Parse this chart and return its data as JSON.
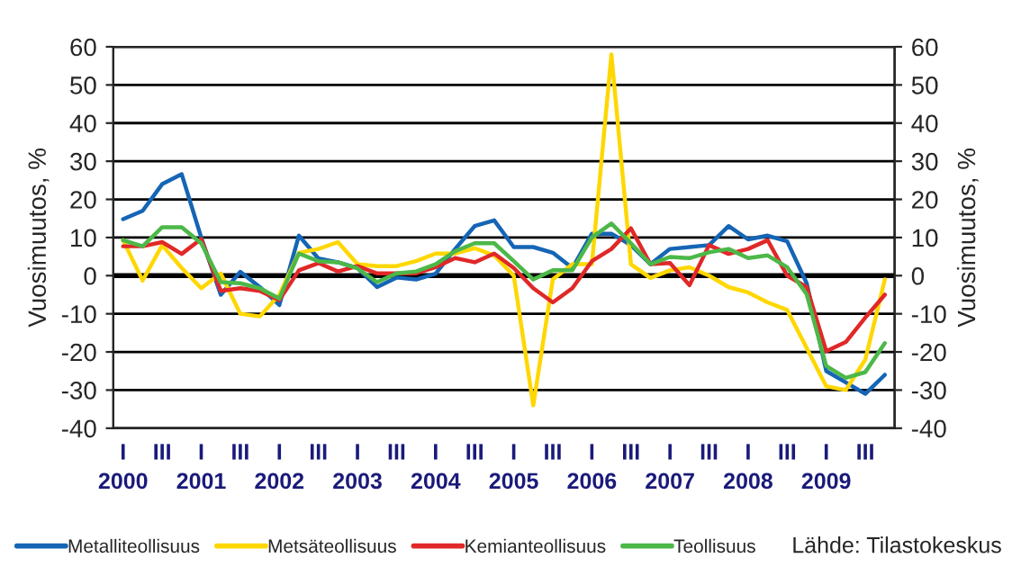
{
  "chart_data": {
    "type": "line",
    "ylabel": "Vuosimuutos, %",
    "y2label": "Vuosimuutos, %",
    "categories": [
      "I\n2000",
      null,
      "III",
      null,
      "I\n2001",
      null,
      "III",
      null,
      "I\n2002",
      null,
      "III",
      null,
      "I\n2003",
      null,
      "III",
      null,
      "I\n2004",
      null,
      "III",
      null,
      "I\n2005",
      null,
      "III",
      null,
      "I\n2006",
      null,
      "III",
      null,
      "I\n2007",
      null,
      "III",
      null,
      "I\n2008",
      null,
      "III",
      null,
      "I\n2009",
      null,
      "III",
      null
    ],
    "series": [
      {
        "name": "Metalliteollisuus",
        "color": "#1565b5",
        "values": [
          14.8,
          17,
          24,
          26.6,
          10,
          -5,
          1,
          -3,
          -7.7,
          10.5,
          4.5,
          3.5,
          2,
          -3,
          -0.5,
          -1,
          0.5,
          7,
          13,
          14.5,
          7.5,
          7.5,
          6,
          2,
          11,
          11,
          8,
          3,
          7,
          7.5,
          8,
          13,
          9.5,
          10.5,
          9,
          -2,
          -25,
          -28,
          -31,
          -26
        ]
      },
      {
        "name": "Metsäteollisuus",
        "color": "#ffd700",
        "values": [
          9.3,
          -1.3,
          8,
          2,
          -3.3,
          0.6,
          -10,
          -10.7,
          -5,
          6,
          7,
          8.8,
          3,
          2.5,
          2.5,
          3.8,
          5.8,
          5.8,
          7.2,
          5.3,
          0,
          -34,
          -1,
          3,
          3,
          58,
          3,
          -0.6,
          1.4,
          2.2,
          0,
          -3,
          -4.4,
          -7,
          -9,
          -19,
          -29,
          -30,
          -22,
          -1
        ]
      },
      {
        "name": "Kemianteollisuus",
        "color": "#e02828",
        "values": [
          7.7,
          7.7,
          8.8,
          5.7,
          9.6,
          -4,
          -3.3,
          -4,
          -6.4,
          1.4,
          3.3,
          1.1,
          2.5,
          0.6,
          0.6,
          0.6,
          2.2,
          4.6,
          3.5,
          5.8,
          2,
          -3.3,
          -7,
          -3.3,
          3.8,
          7,
          12.4,
          3,
          3.3,
          -2.5,
          8,
          5.7,
          7,
          9.3,
          0,
          -3,
          -19.8,
          -17.4,
          -11,
          -5
        ]
      },
      {
        "name": "Teollisuus",
        "color": "#4cb848",
        "values": [
          9.3,
          7.7,
          12.7,
          12.7,
          8.5,
          -1.7,
          -2,
          -3.3,
          -6,
          5.8,
          3.8,
          3.5,
          1.9,
          -1.7,
          0.6,
          1.1,
          3,
          6.4,
          8.5,
          8.5,
          3.8,
          -1,
          1.4,
          1.4,
          10,
          13.7,
          8.5,
          3,
          4.9,
          4.6,
          6.1,
          7,
          4.6,
          5.3,
          2.2,
          -4.9,
          -23.7,
          -26.8,
          -25.3,
          -17.7
        ]
      }
    ],
    "ylim": [
      -40,
      60
    ],
    "yticks": [
      -40,
      -30,
      -20,
      -10,
      0,
      10,
      20,
      30,
      40,
      50,
      60
    ],
    "y2lim": [
      -40,
      60
    ],
    "y2ticks": [
      -40,
      -30,
      -20,
      -10,
      0,
      10,
      20,
      30,
      40,
      50,
      60
    ],
    "ref_lines": [
      {
        "axis": "y",
        "value": 0,
        "color": "#000000"
      }
    ],
    "grid": true,
    "legend": "bottom",
    "marker": "none",
    "line_style": "solid",
    "annotations": [
      "Lähde: Tilastokeskus"
    ]
  }
}
